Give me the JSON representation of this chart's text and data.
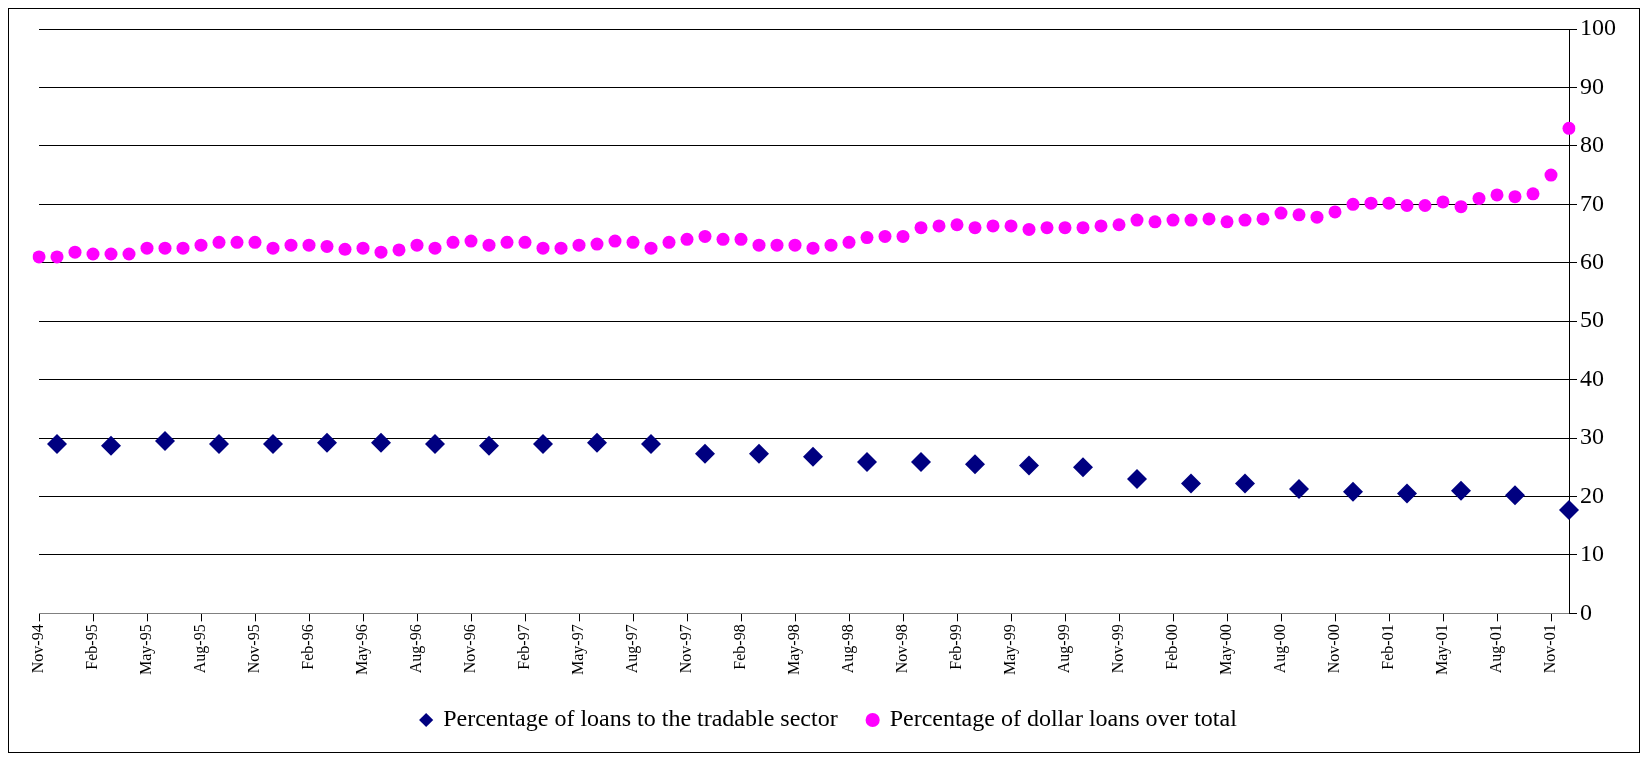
{
  "chart_data": {
    "type": "scatter",
    "categories": [
      "Nov-94",
      null,
      null,
      "Feb-95",
      null,
      null,
      "May-95",
      null,
      null,
      "Aug-95",
      null,
      null,
      "Nov-95",
      null,
      null,
      "Feb-96",
      null,
      null,
      "May-96",
      null,
      null,
      "Aug-96",
      null,
      null,
      "Nov-96",
      null,
      null,
      "Feb-97",
      null,
      null,
      "May-97",
      null,
      null,
      "Aug-97",
      null,
      null,
      "Nov-97",
      null,
      null,
      "Feb-98",
      null,
      null,
      "May-98",
      null,
      null,
      "Aug-98",
      null,
      null,
      "Nov-98",
      null,
      null,
      "Feb-99",
      null,
      null,
      "May-99",
      null,
      null,
      "Aug-99",
      null,
      null,
      "Nov-99",
      null,
      null,
      "Feb-00",
      null,
      null,
      "May-00",
      null,
      null,
      "Aug-00",
      null,
      null,
      "Nov-00",
      null,
      null,
      "Feb-01",
      null,
      null,
      "May-01",
      null,
      null,
      "Aug-01",
      null,
      null,
      "Nov-01",
      null
    ],
    "series": [
      {
        "name": "Percentage of loans to the tradable sector",
        "color": "#000080",
        "marker": "diamond",
        "values": [
          null,
          29,
          null,
          null,
          28.7,
          null,
          null,
          29.5,
          null,
          null,
          29,
          null,
          null,
          29,
          null,
          null,
          29.2,
          null,
          null,
          29.2,
          null,
          null,
          29,
          null,
          null,
          28.7,
          null,
          null,
          29,
          null,
          null,
          29.2,
          null,
          null,
          29,
          null,
          null,
          27.3,
          null,
          null,
          27.3,
          null,
          null,
          26.8,
          null,
          null,
          25.9,
          null,
          null,
          25.9,
          null,
          null,
          25.5,
          null,
          null,
          25.3,
          null,
          null,
          25,
          null,
          null,
          23,
          null,
          null,
          22.2,
          null,
          null,
          22.2,
          null,
          null,
          21.3,
          null,
          null,
          20.8,
          null,
          null,
          20.5,
          null,
          null,
          21,
          null,
          null,
          20.2,
          null,
          null,
          17.7
        ]
      },
      {
        "name": "Percentage of dollar loans over total",
        "color": "#ff00ff",
        "marker": "circle",
        "values": [
          61,
          61,
          61.8,
          61.5,
          61.5,
          61.5,
          62.5,
          62.5,
          62.5,
          63,
          63.5,
          63.5,
          63.5,
          62.5,
          63,
          63,
          62.8,
          62.3,
          62.5,
          61.8,
          62.2,
          63,
          62.5,
          63.5,
          63.7,
          63,
          63.5,
          63.5,
          62.5,
          62.5,
          63,
          63.2,
          63.7,
          63.5,
          62.5,
          63.5,
          64,
          64.5,
          64,
          64,
          63,
          63,
          63,
          62.5,
          63,
          63.5,
          64.3,
          64.5,
          64.5,
          66,
          66.3,
          66.5,
          66,
          66.3,
          66.3,
          65.7,
          66,
          66,
          66,
          66.3,
          66.5,
          67.3,
          67,
          67.3,
          67.3,
          67.5,
          67,
          67.3,
          67.5,
          68.5,
          68.2,
          67.8,
          68.7,
          70,
          70.2,
          70.2,
          69.8,
          69.8,
          70.4,
          69.6,
          71,
          71.6,
          71.3,
          71.8,
          75,
          83
        ]
      }
    ],
    "ylim": [
      0,
      100
    ],
    "yticks": [
      0,
      10,
      20,
      30,
      40,
      50,
      60,
      70,
      80,
      90,
      100
    ],
    "grid": "y",
    "legend": "bottom"
  }
}
